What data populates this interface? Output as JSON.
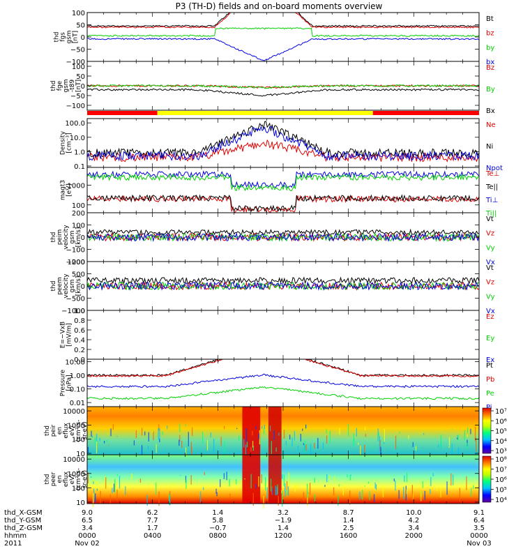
{
  "title": "P3 (TH-D) fields and on-board moments overview",
  "colors": {
    "black": "#000000",
    "red": "#e00000",
    "green": "#00d000",
    "blue": "#0000e0",
    "yellow": "#ffff00",
    "brightred": "#ff0000"
  },
  "quality_bar": [
    {
      "state": "red",
      "from_hour": 0.0,
      "to_hour": 4.3
    },
    {
      "state": "yellow",
      "from_hour": 4.3,
      "to_hour": 17.5
    },
    {
      "state": "red",
      "from_hour": 17.5,
      "to_hour": 24.0
    }
  ],
  "chart_data": [
    {
      "type": "line",
      "id": "fgs",
      "ylabel_lines": [
        "thd",
        "fgs",
        "gsm",
        "[nT]"
      ],
      "yticks": [
        {
          "v": 100,
          "label": "100"
        },
        {
          "v": 50,
          "label": "50"
        },
        {
          "v": 0,
          "label": "0"
        },
        {
          "v": -50,
          "label": "−50"
        },
        {
          "v": -100,
          "label": "−100"
        }
      ],
      "ylim": [
        -100,
        100
      ],
      "series": [
        {
          "name": "Bt",
          "color": "black"
        },
        {
          "name": "bz",
          "color": "red"
        },
        {
          "name": "by",
          "color": "green"
        },
        {
          "name": "bx",
          "color": "blue"
        }
      ]
    },
    {
      "type": "line",
      "id": "fge",
      "ylabel_lines": [
        "thd",
        "fge",
        "gsm",
        "-t89",
        "[nT]"
      ],
      "yticks": [
        {
          "v": 100,
          "label": "100"
        },
        {
          "v": 50,
          "label": "50"
        },
        {
          "v": 0,
          "label": "0"
        },
        {
          "v": -50,
          "label": "−50"
        },
        {
          "v": -100,
          "label": "−100"
        }
      ],
      "ylim": [
        -125,
        125
      ],
      "series": [
        {
          "name": "Bz",
          "color": "red"
        },
        {
          "name": "By",
          "color": "green"
        },
        {
          "name": "Bx",
          "color": "black"
        }
      ]
    },
    {
      "type": "line",
      "id": "density",
      "log": true,
      "ylabel_lines": [
        "Density",
        "[cm⁻³]"
      ],
      "yticks": [
        {
          "v": 100,
          "label": "100.0"
        },
        {
          "v": 10,
          "label": "10.0"
        },
        {
          "v": 1,
          "label": "1.0"
        },
        {
          "v": 0.1,
          "label": "0.1"
        }
      ],
      "ylim": [
        0.08,
        200
      ],
      "series": [
        {
          "name": "Ne",
          "color": "red"
        },
        {
          "name": "Ni",
          "color": "black"
        },
        {
          "name": "Npot",
          "color": "blue"
        }
      ]
    },
    {
      "type": "line",
      "id": "temp",
      "log": true,
      "ylabel_lines": [
        "magt3",
        "[eV]"
      ],
      "yticks": [
        {
          "v": 1000,
          "label": "1000"
        },
        {
          "v": 100,
          "label": "100"
        }
      ],
      "ylim": [
        40,
        8000
      ],
      "series": [
        {
          "name": "Te⊥",
          "color": "red"
        },
        {
          "name": "Te||",
          "color": "black"
        },
        {
          "name": "Ti⊥",
          "color": "blue"
        },
        {
          "name": "Ti||",
          "color": "green"
        }
      ]
    },
    {
      "type": "line",
      "id": "peim",
      "ylabel_lines": [
        "thd",
        "peim",
        "velocity",
        "gsm",
        "[km/s]"
      ],
      "yticks": [
        {
          "v": 200,
          "label": "200"
        },
        {
          "v": 100,
          "label": "100"
        },
        {
          "v": 0,
          "label": "0"
        },
        {
          "v": -100,
          "label": "−100"
        },
        {
          "v": -200,
          "label": "−200"
        }
      ],
      "ylim": [
        -200,
        200
      ],
      "series": [
        {
          "name": "Vt",
          "color": "black"
        },
        {
          "name": "Vz",
          "color": "red"
        },
        {
          "name": "Vy",
          "color": "green"
        },
        {
          "name": "Vx",
          "color": "blue"
        }
      ]
    },
    {
      "type": "line",
      "id": "peem",
      "ylabel_lines": [
        "thd",
        "peem",
        "velocity",
        "gsm",
        "[km/s]"
      ],
      "yticks": [
        {
          "v": 1000,
          "label": "1000"
        },
        {
          "v": 500,
          "label": "500"
        },
        {
          "v": 0,
          "label": "0"
        },
        {
          "v": -500,
          "label": "−500"
        },
        {
          "v": -1000,
          "label": "−1000"
        }
      ],
      "ylim": [
        -1000,
        1000
      ],
      "series": [
        {
          "name": "Vt",
          "color": "black"
        },
        {
          "name": "Vz",
          "color": "red"
        },
        {
          "name": "Vy",
          "color": "green"
        },
        {
          "name": "Vx",
          "color": "blue"
        }
      ]
    },
    {
      "type": "line",
      "id": "efield",
      "ylabel_lines": [
        "E=−VxB",
        "[mV/m]"
      ],
      "yticks": [
        {
          "v": 1,
          "label": "1.0"
        },
        {
          "v": 0.8,
          "label": "0.8"
        },
        {
          "v": 0.6,
          "label": "0.6"
        },
        {
          "v": 0.4,
          "label": "0.4"
        },
        {
          "v": 0.2,
          "label": "0.2"
        },
        {
          "v": 0,
          "label": "0.0"
        }
      ],
      "ylim": [
        0,
        1
      ],
      "series": [
        {
          "name": "Ez",
          "color": "red"
        },
        {
          "name": "Ey",
          "color": "green"
        },
        {
          "name": "Ex",
          "color": "blue"
        }
      ]
    },
    {
      "type": "line",
      "id": "pressure",
      "log": true,
      "ylabel_lines": [
        "Pressure",
        "[nPa]"
      ],
      "yticks": [
        {
          "v": 10,
          "label": "10.00"
        },
        {
          "v": 1,
          "label": "1.00"
        },
        {
          "v": 0.1,
          "label": "0.10"
        },
        {
          "v": 0.01,
          "label": "0.01"
        }
      ],
      "ylim": [
        0.005,
        15
      ],
      "series": [
        {
          "name": "Pt",
          "color": "black"
        },
        {
          "name": "Pb",
          "color": "red"
        },
        {
          "name": "Pe",
          "color": "green"
        },
        {
          "name": "Pi",
          "color": "blue"
        }
      ]
    },
    {
      "type": "heatmap",
      "id": "peir",
      "ylabel_lines": [
        "thd",
        "peir",
        "en",
        "eflux",
        "eV/",
        "(cm²-s-",
        "sr-eV)"
      ],
      "yticks": [
        {
          "v": 10000,
          "label": "10000"
        },
        {
          "v": 1000,
          "label": "1000"
        },
        {
          "v": 100,
          "label": "100"
        },
        {
          "v": 10,
          "label": "10"
        }
      ],
      "colorbar_ticks": [
        "10⁷",
        "10⁶",
        "10⁵",
        "10⁴",
        "10³"
      ],
      "clim_exp": [
        3,
        7
      ]
    },
    {
      "type": "heatmap",
      "id": "peer",
      "ylabel_lines": [
        "thd",
        "peer",
        "en",
        "eflux",
        "eV/",
        "(cm²-s-",
        "sr-eV)"
      ],
      "yticks": [
        {
          "v": 10000,
          "label": "10000"
        },
        {
          "v": 1000,
          "label": "1000"
        },
        {
          "v": 100,
          "label": "100"
        },
        {
          "v": 10,
          "label": "10"
        }
      ],
      "colorbar_ticks": [
        "10⁸",
        "10⁷",
        "10⁶",
        "10⁵",
        "10⁴"
      ],
      "clim_exp": [
        4,
        8
      ]
    }
  ],
  "xaxis": {
    "row_labels": [
      "thd_X-GSM",
      "thd_Y-GSM",
      "thd_Z-GSM",
      "hhmm",
      "2011"
    ],
    "columns": [
      {
        "hour": 0,
        "x": "9.0",
        "y": "6.5",
        "z": "3.4",
        "time": "0000",
        "date": "Nov 02"
      },
      {
        "hour": 4,
        "x": "6.2",
        "y": "7.7",
        "z": "1.7",
        "time": "0400",
        "date": ""
      },
      {
        "hour": 8,
        "x": "1.4",
        "y": "5.8",
        "z": "−0.7",
        "time": "0800",
        "date": ""
      },
      {
        "hour": 12,
        "x": "3.2",
        "y": "−1.9",
        "z": "1.4",
        "time": "1200",
        "date": ""
      },
      {
        "hour": 16,
        "x": "8.7",
        "y": "1.4",
        "z": "2.5",
        "time": "1600",
        "date": ""
      },
      {
        "hour": 20,
        "x": "10.0",
        "y": "4.2",
        "z": "3.4",
        "time": "2000",
        "date": ""
      },
      {
        "hour": 24,
        "x": "9.1",
        "y": "6.4",
        "z": "3.5",
        "time": "0000",
        "date": "Nov 03"
      }
    ]
  }
}
